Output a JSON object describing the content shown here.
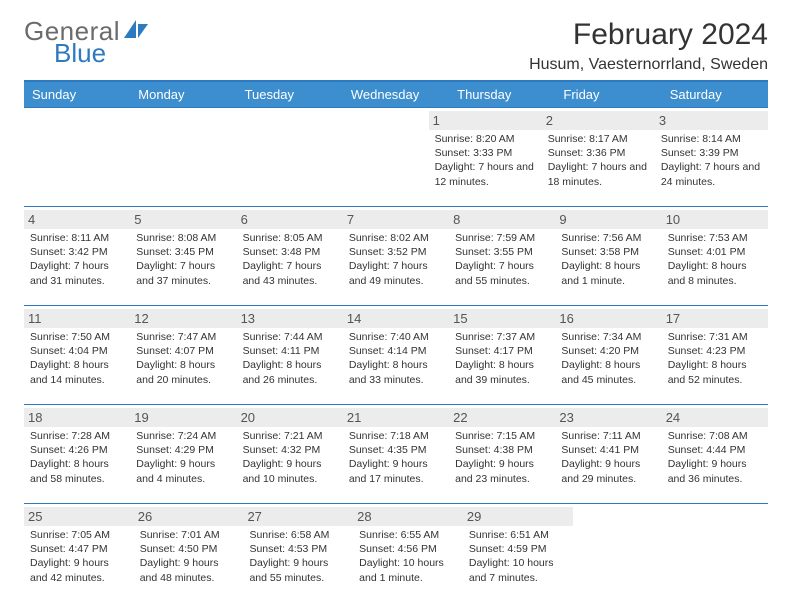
{
  "brand": {
    "text1": "General",
    "text2": "Blue"
  },
  "title": "February 2024",
  "location": "Husum, Vaesternorrland, Sweden",
  "colors": {
    "accent": "#2e7ac0",
    "header_bg": "#3d8ecf",
    "header_text": "#ffffff",
    "daynum_bg": "#ececec",
    "text": "#333333",
    "logo_gray": "#6b6b6b"
  },
  "weekdays": [
    "Sunday",
    "Monday",
    "Tuesday",
    "Wednesday",
    "Thursday",
    "Friday",
    "Saturday"
  ],
  "weeks": [
    [
      null,
      null,
      null,
      null,
      {
        "n": "1",
        "sunrise": "8:20 AM",
        "sunset": "3:33 PM",
        "daylight": "7 hours and 12 minutes."
      },
      {
        "n": "2",
        "sunrise": "8:17 AM",
        "sunset": "3:36 PM",
        "daylight": "7 hours and 18 minutes."
      },
      {
        "n": "3",
        "sunrise": "8:14 AM",
        "sunset": "3:39 PM",
        "daylight": "7 hours and 24 minutes."
      }
    ],
    [
      {
        "n": "4",
        "sunrise": "8:11 AM",
        "sunset": "3:42 PM",
        "daylight": "7 hours and 31 minutes."
      },
      {
        "n": "5",
        "sunrise": "8:08 AM",
        "sunset": "3:45 PM",
        "daylight": "7 hours and 37 minutes."
      },
      {
        "n": "6",
        "sunrise": "8:05 AM",
        "sunset": "3:48 PM",
        "daylight": "7 hours and 43 minutes."
      },
      {
        "n": "7",
        "sunrise": "8:02 AM",
        "sunset": "3:52 PM",
        "daylight": "7 hours and 49 minutes."
      },
      {
        "n": "8",
        "sunrise": "7:59 AM",
        "sunset": "3:55 PM",
        "daylight": "7 hours and 55 minutes."
      },
      {
        "n": "9",
        "sunrise": "7:56 AM",
        "sunset": "3:58 PM",
        "daylight": "8 hours and 1 minute."
      },
      {
        "n": "10",
        "sunrise": "7:53 AM",
        "sunset": "4:01 PM",
        "daylight": "8 hours and 8 minutes."
      }
    ],
    [
      {
        "n": "11",
        "sunrise": "7:50 AM",
        "sunset": "4:04 PM",
        "daylight": "8 hours and 14 minutes."
      },
      {
        "n": "12",
        "sunrise": "7:47 AM",
        "sunset": "4:07 PM",
        "daylight": "8 hours and 20 minutes."
      },
      {
        "n": "13",
        "sunrise": "7:44 AM",
        "sunset": "4:11 PM",
        "daylight": "8 hours and 26 minutes."
      },
      {
        "n": "14",
        "sunrise": "7:40 AM",
        "sunset": "4:14 PM",
        "daylight": "8 hours and 33 minutes."
      },
      {
        "n": "15",
        "sunrise": "7:37 AM",
        "sunset": "4:17 PM",
        "daylight": "8 hours and 39 minutes."
      },
      {
        "n": "16",
        "sunrise": "7:34 AM",
        "sunset": "4:20 PM",
        "daylight": "8 hours and 45 minutes."
      },
      {
        "n": "17",
        "sunrise": "7:31 AM",
        "sunset": "4:23 PM",
        "daylight": "8 hours and 52 minutes."
      }
    ],
    [
      {
        "n": "18",
        "sunrise": "7:28 AM",
        "sunset": "4:26 PM",
        "daylight": "8 hours and 58 minutes."
      },
      {
        "n": "19",
        "sunrise": "7:24 AM",
        "sunset": "4:29 PM",
        "daylight": "9 hours and 4 minutes."
      },
      {
        "n": "20",
        "sunrise": "7:21 AM",
        "sunset": "4:32 PM",
        "daylight": "9 hours and 10 minutes."
      },
      {
        "n": "21",
        "sunrise": "7:18 AM",
        "sunset": "4:35 PM",
        "daylight": "9 hours and 17 minutes."
      },
      {
        "n": "22",
        "sunrise": "7:15 AM",
        "sunset": "4:38 PM",
        "daylight": "9 hours and 23 minutes."
      },
      {
        "n": "23",
        "sunrise": "7:11 AM",
        "sunset": "4:41 PM",
        "daylight": "9 hours and 29 minutes."
      },
      {
        "n": "24",
        "sunrise": "7:08 AM",
        "sunset": "4:44 PM",
        "daylight": "9 hours and 36 minutes."
      }
    ],
    [
      {
        "n": "25",
        "sunrise": "7:05 AM",
        "sunset": "4:47 PM",
        "daylight": "9 hours and 42 minutes."
      },
      {
        "n": "26",
        "sunrise": "7:01 AM",
        "sunset": "4:50 PM",
        "daylight": "9 hours and 48 minutes."
      },
      {
        "n": "27",
        "sunrise": "6:58 AM",
        "sunset": "4:53 PM",
        "daylight": "9 hours and 55 minutes."
      },
      {
        "n": "28",
        "sunrise": "6:55 AM",
        "sunset": "4:56 PM",
        "daylight": "10 hours and 1 minute."
      },
      {
        "n": "29",
        "sunrise": "6:51 AM",
        "sunset": "4:59 PM",
        "daylight": "10 hours and 7 minutes."
      },
      null,
      null
    ]
  ],
  "labels": {
    "sunrise": "Sunrise:",
    "sunset": "Sunset:",
    "daylight": "Daylight:"
  }
}
